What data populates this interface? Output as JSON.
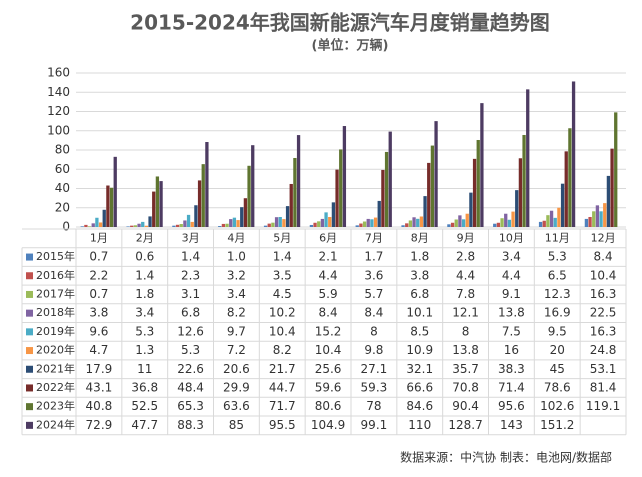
{
  "chart_data": {
    "type": "bar",
    "title": "2015-2024年我国新能源汽车月度销量趋势图",
    "subtitle": "(单位：万辆)",
    "source": "数据来源：中汽协  制表：电池网/数据部",
    "categories": [
      "1月",
      "2月",
      "3月",
      "4月",
      "5月",
      "6月",
      "7月",
      "8月",
      "9月",
      "10月",
      "11月",
      "12月"
    ],
    "ylim": [
      0,
      160
    ],
    "yticks": [
      0,
      20,
      40,
      60,
      80,
      100,
      120,
      140,
      160
    ],
    "grid": true,
    "series": [
      {
        "name": "2015年",
        "color": "#4f81bd",
        "values": [
          0.7,
          0.6,
          1.4,
          1.0,
          1.4,
          2.1,
          1.7,
          1.8,
          2.8,
          3.4,
          5.3,
          8.4
        ],
        "value_labels": [
          "0.7",
          "0.6",
          "1.4",
          "1.0",
          "1.4",
          "2.1",
          "1.7",
          "1.8",
          "2.8",
          "3.4",
          "5.3",
          "8.4"
        ]
      },
      {
        "name": "2016年",
        "color": "#c0504d",
        "values": [
          2.2,
          1.4,
          2.3,
          3.2,
          3.5,
          4.4,
          3.6,
          3.8,
          4.4,
          4.4,
          6.5,
          10.4
        ]
      },
      {
        "name": "2017年",
        "color": "#9bbb59",
        "values": [
          0.7,
          1.8,
          3.1,
          3.4,
          4.5,
          5.9,
          5.7,
          6.8,
          7.8,
          9.1,
          12.3,
          16.3
        ]
      },
      {
        "name": "2018年",
        "color": "#8064a2",
        "values": [
          3.8,
          3.4,
          6.8,
          8.2,
          10.2,
          8.4,
          8.4,
          10.1,
          12.1,
          13.8,
          16.9,
          22.5
        ]
      },
      {
        "name": "2019年",
        "color": "#4bacc6",
        "values": [
          9.6,
          5.3,
          12.6,
          9.7,
          10.4,
          15.2,
          8,
          8.5,
          8,
          7.5,
          9.5,
          16.3
        ]
      },
      {
        "name": "2020年",
        "color": "#f79646",
        "values": [
          4.7,
          1.3,
          5.3,
          7.2,
          8.2,
          10.4,
          9.8,
          10.9,
          13.8,
          16,
          20,
          24.8
        ]
      },
      {
        "name": "2021年",
        "color": "#2c4d75",
        "values": [
          17.9,
          11,
          22.6,
          20.6,
          21.7,
          25.6,
          27.1,
          32.1,
          35.7,
          38.3,
          45,
          53.1
        ]
      },
      {
        "name": "2022年",
        "color": "#772c2a",
        "values": [
          43.1,
          36.8,
          48.4,
          29.9,
          44.7,
          59.6,
          59.3,
          66.6,
          70.8,
          71.4,
          78.6,
          81.4
        ]
      },
      {
        "name": "2023年",
        "color": "#5f7530",
        "values": [
          40.8,
          52.5,
          65.3,
          63.6,
          71.7,
          80.6,
          78,
          84.6,
          90.4,
          95.6,
          102.6,
          119.1
        ]
      },
      {
        "name": "2024年",
        "color": "#4d3b62",
        "values": [
          72.9,
          47.7,
          88.3,
          85,
          95.5,
          104.9,
          99.1,
          110,
          128.7,
          143,
          151.2,
          null
        ]
      }
    ]
  }
}
